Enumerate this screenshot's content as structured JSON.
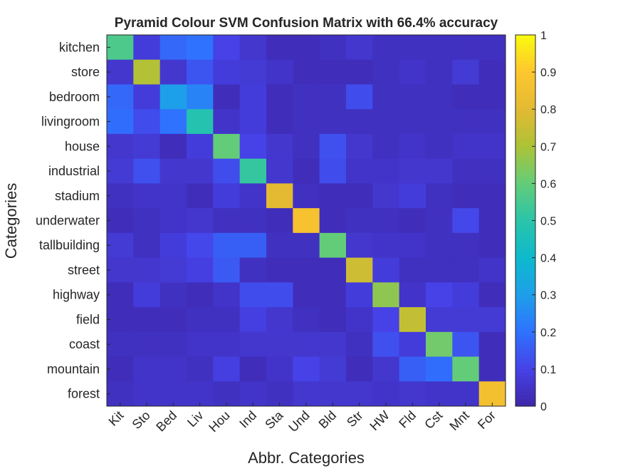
{
  "chart_data": {
    "type": "heatmap",
    "title": "Pyramid Colour SVM Confusion Matrix with 66.4% accuracy",
    "xlabel": "Abbr. Categories",
    "ylabel": "Categories",
    "x_categories": [
      "Kit",
      "Sto",
      "Bed",
      "Liv",
      "Hou",
      "Ind",
      "Sta",
      "Und",
      "Bld",
      "Str",
      "HW",
      "Fld",
      "Cst",
      "Mnt",
      "For"
    ],
    "y_categories": [
      "kitchen",
      "store",
      "bedroom",
      "livingroom",
      "house",
      "industrial",
      "stadium",
      "underwater",
      "tallbuilding",
      "street",
      "highway",
      "field",
      "coast",
      "mountain",
      "forest"
    ],
    "values": [
      [
        0.56,
        0.08,
        0.18,
        0.2,
        0.1,
        0.06,
        0.03,
        0.03,
        0.04,
        0.06,
        0.04,
        0.04,
        0.04,
        0.04,
        0.04
      ],
      [
        0.06,
        0.71,
        0.06,
        0.14,
        0.08,
        0.07,
        0.05,
        0.03,
        0.03,
        0.03,
        0.04,
        0.05,
        0.04,
        0.07,
        0.03
      ],
      [
        0.18,
        0.08,
        0.3,
        0.24,
        0.03,
        0.08,
        0.03,
        0.04,
        0.04,
        0.12,
        0.04,
        0.04,
        0.04,
        0.03,
        0.03
      ],
      [
        0.19,
        0.12,
        0.2,
        0.48,
        0.05,
        0.08,
        0.03,
        0.04,
        0.04,
        0.04,
        0.04,
        0.04,
        0.04,
        0.04,
        0.04
      ],
      [
        0.06,
        0.07,
        0.03,
        0.08,
        0.6,
        0.1,
        0.06,
        0.04,
        0.13,
        0.06,
        0.04,
        0.05,
        0.04,
        0.05,
        0.05
      ],
      [
        0.07,
        0.13,
        0.06,
        0.06,
        0.12,
        0.52,
        0.06,
        0.03,
        0.12,
        0.05,
        0.05,
        0.06,
        0.06,
        0.04,
        0.04
      ],
      [
        0.04,
        0.05,
        0.05,
        0.03,
        0.08,
        0.05,
        0.8,
        0.04,
        0.03,
        0.03,
        0.06,
        0.08,
        0.04,
        0.03,
        0.03
      ],
      [
        0.03,
        0.04,
        0.05,
        0.06,
        0.04,
        0.04,
        0.03,
        0.87,
        0.03,
        0.04,
        0.04,
        0.03,
        0.04,
        0.11,
        0.03
      ],
      [
        0.07,
        0.04,
        0.08,
        0.11,
        0.16,
        0.16,
        0.04,
        0.04,
        0.6,
        0.06,
        0.05,
        0.05,
        0.04,
        0.04,
        0.03
      ],
      [
        0.06,
        0.06,
        0.07,
        0.09,
        0.15,
        0.04,
        0.03,
        0.03,
        0.03,
        0.76,
        0.08,
        0.04,
        0.04,
        0.04,
        0.05
      ],
      [
        0.03,
        0.08,
        0.04,
        0.03,
        0.05,
        0.12,
        0.12,
        0.03,
        0.03,
        0.08,
        0.66,
        0.05,
        0.1,
        0.08,
        0.03
      ],
      [
        0.03,
        0.03,
        0.03,
        0.04,
        0.04,
        0.09,
        0.06,
        0.04,
        0.03,
        0.05,
        0.1,
        0.74,
        0.07,
        0.07,
        0.07
      ],
      [
        0.04,
        0.04,
        0.04,
        0.05,
        0.05,
        0.06,
        0.06,
        0.06,
        0.06,
        0.04,
        0.13,
        0.08,
        0.62,
        0.14,
        0.03
      ],
      [
        0.03,
        0.05,
        0.05,
        0.04,
        0.09,
        0.03,
        0.05,
        0.1,
        0.07,
        0.03,
        0.06,
        0.16,
        0.19,
        0.6,
        0.03
      ],
      [
        0.04,
        0.05,
        0.05,
        0.05,
        0.04,
        0.05,
        0.04,
        0.06,
        0.06,
        0.06,
        0.05,
        0.06,
        0.05,
        0.05,
        0.86
      ]
    ],
    "colorbar": {
      "ticks": [
        "0",
        "0.1",
        "0.2",
        "0.3",
        "0.4",
        "0.5",
        "0.6",
        "0.7",
        "0.8",
        "0.9",
        "1"
      ],
      "range": [
        0,
        1
      ]
    },
    "colormap": "parula"
  }
}
